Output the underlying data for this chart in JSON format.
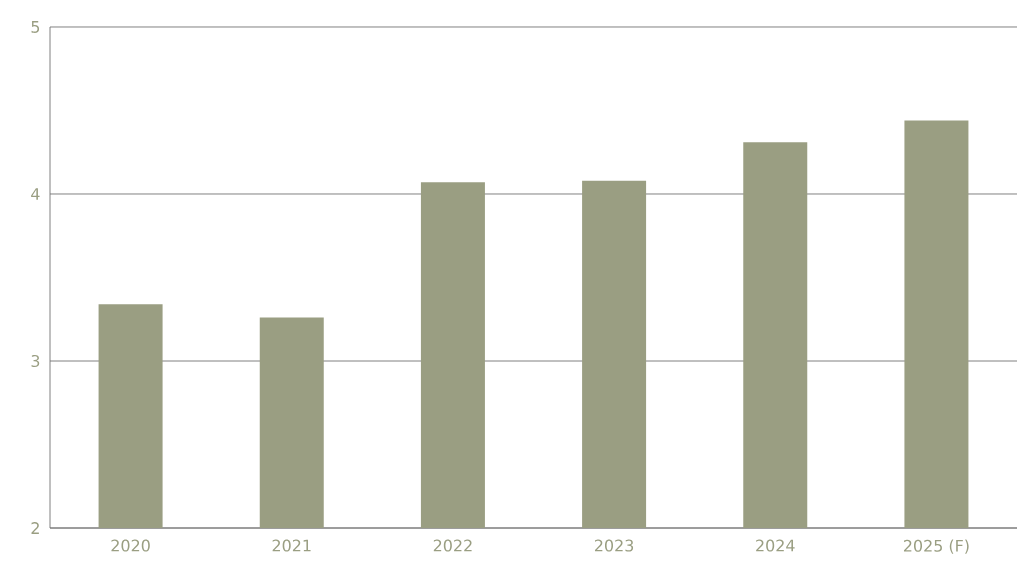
{
  "chart_data": {
    "type": "bar",
    "categories": [
      "2020",
      "2021",
      "2022",
      "2023",
      "2024",
      "2025 (F)"
    ],
    "values": [
      3.34,
      3.26,
      4.07,
      4.08,
      4.31,
      4.44
    ],
    "color": "#9a9e82",
    "ylim": [
      2,
      5
    ],
    "yticks": [
      2,
      3,
      4,
      5
    ],
    "grid": "y"
  }
}
